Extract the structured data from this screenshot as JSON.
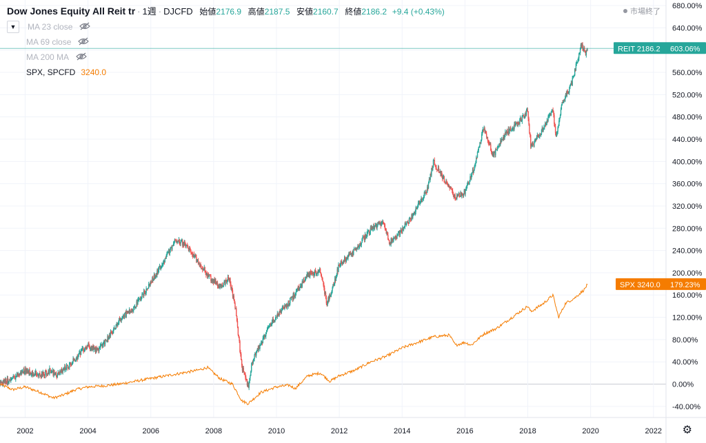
{
  "header": {
    "title": "Dow Jones Equity All Reit tr",
    "interval": "1週",
    "source": "DJCFD",
    "open_label": "始値",
    "open_value": "2176.9",
    "high_label": "高値",
    "high_value": "2187.5",
    "low_label": "安値",
    "low_value": "2160.7",
    "close_label": "終値",
    "close_value": "2186.2",
    "change": "+9.4 (+0.43%)"
  },
  "status": "市場終了",
  "legend": {
    "ma1": "MA 23 close",
    "ma2": "MA 69 close",
    "ma3": "MA 200 MA",
    "spx_name": "SPX, SPCFD",
    "spx_value": "3240.0"
  },
  "badges": {
    "reit": "REIT 2186.2",
    "reit_pct": "603.06%",
    "spx": "SPX 3240.0",
    "spx_pct": "179.23%"
  },
  "colors": {
    "up": "#26a69a",
    "down": "#ef5350",
    "spx": "#f57c00"
  },
  "chart_data": {
    "type": "line",
    "title": "Dow Jones Equity All Reit tr",
    "y_unit": "%",
    "ylim": [
      -60,
      690
    ],
    "y_ticks": [
      680,
      640,
      600,
      560,
      520,
      480,
      440,
      400,
      360,
      320,
      280,
      240,
      200,
      160,
      120,
      80,
      40,
      0,
      -40
    ],
    "y_tick_labels": [
      "680.00%",
      "640.00%",
      "600.00%",
      "560.00%",
      "520.00%",
      "480.00%",
      "440.00%",
      "400.00%",
      "360.00%",
      "320.00%",
      "280.00%",
      "240.00%",
      "200.00%",
      "160.00%",
      "120.00%",
      "80.00%",
      "40.00%",
      "0.00%",
      "-40.00%"
    ],
    "xlim": [
      2001.2,
      2022.4
    ],
    "x_ticks": [
      2002,
      2004,
      2006,
      2008,
      2010,
      2012,
      2014,
      2016,
      2018,
      2020,
      2022
    ],
    "x_tick_labels": [
      "2002",
      "2004",
      "2006",
      "2008",
      "2010",
      "2012",
      "2014",
      "2016",
      "2018",
      "2020",
      "2022"
    ],
    "grid": true,
    "series": [
      {
        "name": "REIT",
        "style": "candlestick",
        "x": [
          2001.2,
          2001.6,
          2002.0,
          2002.5,
          2002.8,
          2003.0,
          2003.5,
          2004.0,
          2004.3,
          2004.8,
          2005.0,
          2005.5,
          2005.8,
          2006.3,
          2006.8,
          2007.1,
          2007.5,
          2007.9,
          2008.2,
          2008.5,
          2008.7,
          2008.9,
          2009.1,
          2009.25,
          2009.5,
          2009.8,
          2010.0,
          2010.5,
          2011.0,
          2011.4,
          2011.6,
          2011.8,
          2012.0,
          2012.5,
          2013.0,
          2013.4,
          2013.6,
          2013.9,
          2014.3,
          2014.8,
          2015.0,
          2015.3,
          2015.7,
          2016.0,
          2016.3,
          2016.6,
          2016.9,
          2017.3,
          2017.7,
          2018.0,
          2018.1,
          2018.5,
          2018.8,
          2018.9,
          2019.1,
          2019.4,
          2019.7,
          2019.85,
          2019.9
        ],
        "values": [
          0,
          10,
          25,
          15,
          25,
          15,
          40,
          70,
          60,
          95,
          115,
          140,
          165,
          210,
          260,
          250,
          220,
          190,
          175,
          190,
          135,
          30,
          -5,
          45,
          70,
          110,
          120,
          155,
          195,
          205,
          145,
          175,
          215,
          240,
          280,
          290,
          255,
          270,
          300,
          350,
          400,
          370,
          335,
          345,
          390,
          460,
          410,
          450,
          470,
          490,
          425,
          460,
          495,
          440,
          505,
          540,
          610,
          595,
          603
        ]
      },
      {
        "name": "SPX",
        "style": "line",
        "x": [
          2001.2,
          2001.6,
          2002.0,
          2002.5,
          2002.9,
          2003.2,
          2003.6,
          2004.0,
          2004.5,
          2005.0,
          2005.5,
          2006.0,
          2006.5,
          2007.0,
          2007.5,
          2007.8,
          2008.2,
          2008.6,
          2008.9,
          2009.1,
          2009.2,
          2009.5,
          2010.0,
          2010.4,
          2010.6,
          2011.0,
          2011.4,
          2011.7,
          2012.0,
          2012.5,
          2013.0,
          2013.5,
          2014.0,
          2014.5,
          2015.0,
          2015.5,
          2015.7,
          2016.0,
          2016.2,
          2016.6,
          2017.0,
          2017.5,
          2018.0,
          2018.1,
          2018.5,
          2018.8,
          2018.98,
          2019.2,
          2019.5,
          2019.8,
          2019.9
        ],
        "values": [
          0,
          -10,
          -5,
          -15,
          -25,
          -20,
          -10,
          -5,
          -3,
          0,
          5,
          10,
          15,
          20,
          25,
          30,
          10,
          0,
          -30,
          -35,
          -30,
          -15,
          -5,
          -2,
          -8,
          15,
          20,
          5,
          15,
          25,
          40,
          50,
          65,
          75,
          85,
          88,
          70,
          75,
          70,
          90,
          100,
          120,
          140,
          130,
          145,
          160,
          120,
          145,
          155,
          170,
          179
        ]
      }
    ]
  }
}
